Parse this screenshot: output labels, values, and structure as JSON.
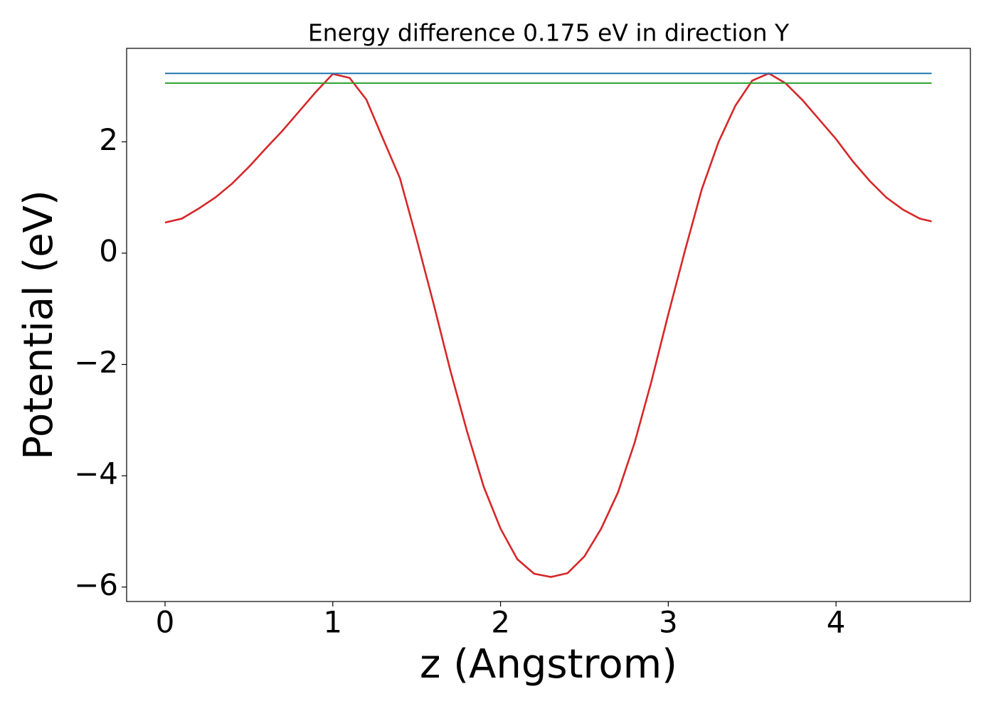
{
  "chart_data": {
    "type": "line",
    "title": "Energy difference 0.175 eV in direction Y",
    "xlabel": "z (Angstrom)",
    "ylabel": "Potential (eV)",
    "xlim": [
      -0.229,
      4.801
    ],
    "ylim": [
      -6.26,
      3.68
    ],
    "xticks": [
      0,
      1,
      2,
      3,
      4
    ],
    "yticks": [
      {
        "value": -6,
        "label": "−6"
      },
      {
        "value": -4,
        "label": "−4"
      },
      {
        "value": -2,
        "label": "−2"
      },
      0,
      2
    ],
    "grid": false,
    "series": [
      {
        "color": "#d62728",
        "x": [
          0,
          0.1,
          0.2,
          0.3,
          0.4,
          0.5,
          0.6,
          0.7,
          0.8,
          0.9,
          1.0,
          1.1,
          1.2,
          1.3,
          1.4,
          1.5,
          1.6,
          1.7,
          1.8,
          1.9,
          2.0,
          2.1,
          2.2,
          2.3,
          2.4,
          2.5,
          2.6,
          2.7,
          2.8,
          2.9,
          3.0,
          3.1,
          3.2,
          3.3,
          3.4,
          3.5,
          3.6,
          3.7,
          3.8,
          3.9,
          4.0,
          4.1,
          4.2,
          4.3,
          4.4,
          4.5,
          4.57
        ],
        "values": [
          0.55,
          0.62,
          0.8,
          1.0,
          1.25,
          1.55,
          1.88,
          2.2,
          2.55,
          2.9,
          3.22,
          3.15,
          2.76,
          2.05,
          1.35,
          0.25,
          -0.9,
          -2.1,
          -3.2,
          -4.2,
          -4.95,
          -5.5,
          -5.76,
          -5.82,
          -5.75,
          -5.45,
          -4.95,
          -4.3,
          -3.4,
          -2.3,
          -1.1,
          0.05,
          1.15,
          2.0,
          2.65,
          3.1,
          3.23,
          3.05,
          2.75,
          2.4,
          2.05,
          1.65,
          1.3,
          1.0,
          0.78,
          0.62,
          0.57
        ]
      },
      {
        "color": "#1f77b4",
        "x": [
          0,
          4.57
        ],
        "values": [
          3.23,
          3.23
        ]
      },
      {
        "color": "#2ca02c",
        "x": [
          0,
          4.57
        ],
        "values": [
          3.055,
          3.055
        ]
      }
    ]
  }
}
